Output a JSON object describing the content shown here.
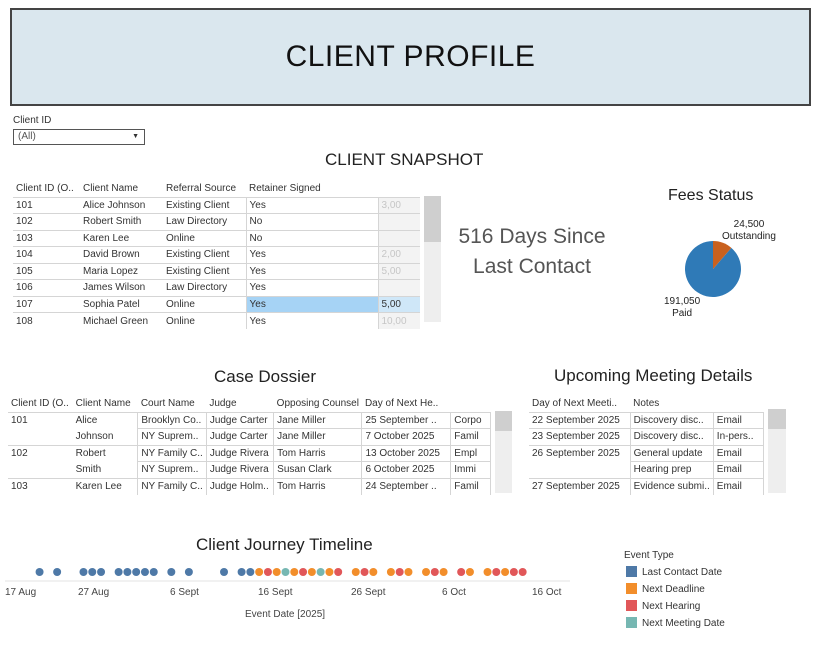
{
  "header": {
    "title": "CLIENT PROFILE"
  },
  "filter": {
    "label": "Client ID",
    "value": "(All)"
  },
  "snapshot": {
    "title": "CLIENT SNAPSHOT",
    "columns": [
      "Client ID (O..",
      "Client Name",
      "Referral Source",
      "Retainer Signed"
    ],
    "rows": [
      {
        "id": "101",
        "name": "Alice Johnson",
        "source": "Existing Client",
        "retainer": "Yes",
        "fee": "3,00"
      },
      {
        "id": "102",
        "name": "Robert Smith",
        "source": "Law Directory",
        "retainer": "No",
        "fee": ""
      },
      {
        "id": "103",
        "name": "Karen Lee",
        "source": "Online",
        "retainer": "No",
        "fee": ""
      },
      {
        "id": "104",
        "name": "David Brown",
        "source": "Existing Client",
        "retainer": "Yes",
        "fee": "2,00"
      },
      {
        "id": "105",
        "name": "Maria Lopez",
        "source": "Existing Client",
        "retainer": "Yes",
        "fee": "5,00"
      },
      {
        "id": "106",
        "name": "James Wilson",
        "source": "Law Directory",
        "retainer": "Yes",
        "fee": ""
      },
      {
        "id": "107",
        "name": "Sophia Patel",
        "source": "Online",
        "retainer": "Yes",
        "fee": "5,00"
      },
      {
        "id": "108",
        "name": "Michael Green",
        "source": "Online",
        "retainer": "Yes",
        "fee": "10,00"
      }
    ]
  },
  "metric": {
    "line1": "516 Days Since",
    "line2": "Last Contact"
  },
  "fees": {
    "title": "Fees Status",
    "outstanding_value": "24,500",
    "outstanding_label": "Outstanding",
    "paid_value": "191,050",
    "paid_label": "Paid",
    "colors": {
      "paid": "#2f7ab7",
      "outstanding": "#c9611f"
    }
  },
  "dossier": {
    "title": "Case Dossier",
    "columns": [
      "Client ID (O..",
      "Client Name",
      "Court Name",
      "Judge",
      "Opposing Counsel",
      "Day of Next He.."
    ],
    "rows": [
      {
        "id": "101",
        "name": "Alice",
        "court": "Brooklyn Co..",
        "judge": "Judge Carter",
        "counsel": "Jane Miller",
        "date": "25 September ..",
        "type": "Corpo"
      },
      {
        "id": "",
        "name": "Johnson",
        "court": "NY Suprem..",
        "judge": "Judge Carter",
        "counsel": "Jane Miller",
        "date": "7 October 2025",
        "type": "Famil"
      },
      {
        "id": "102",
        "name": "Robert",
        "court": "NY Family C..",
        "judge": "Judge Rivera",
        "counsel": "Tom Harris",
        "date": "13 October 2025",
        "type": "Empl"
      },
      {
        "id": "",
        "name": "Smith",
        "court": "NY Suprem..",
        "judge": "Judge Rivera",
        "counsel": "Susan Clark",
        "date": "6 October 2025",
        "type": "Immi"
      },
      {
        "id": "103",
        "name": "Karen Lee",
        "court": "NY Family C..",
        "judge": "Judge Holm..",
        "counsel": "Tom Harris",
        "date": "24 September ..",
        "type": "Famil"
      }
    ]
  },
  "meetings": {
    "title": "Upcoming Meeting Details",
    "columns": [
      "Day of Next Meeti..",
      "Notes"
    ],
    "rows": [
      {
        "date": "22 September 2025",
        "note": "Discovery disc..",
        "mode": "Email"
      },
      {
        "date": "23 September 2025",
        "note": "Discovery disc..",
        "mode": "In-pers.."
      },
      {
        "date": "26 September 2025",
        "note": "General update",
        "mode": "Email"
      },
      {
        "date": "",
        "note": "Hearing prep",
        "mode": "Email"
      },
      {
        "date": "27 September 2025",
        "note": "Evidence submi..",
        "mode": "Email"
      }
    ]
  },
  "chart_data": {
    "type": "scatter",
    "title": "Client Journey Timeline",
    "xlabel": "Event Date [2025]",
    "x_ticks": [
      "17 Aug",
      "27 Aug",
      "6 Sept",
      "16 Sept",
      "26 Sept",
      "6 Oct",
      "16 Oct"
    ],
    "x_range": [
      "2025-08-17",
      "2025-10-16"
    ],
    "legend_title": "Event Type",
    "legend_position": "right",
    "series": [
      {
        "name": "Last Contact Date",
        "color": "#4e79a7",
        "x": [
          "2025-08-19",
          "2025-08-21",
          "2025-08-24",
          "2025-08-25",
          "2025-08-26",
          "2025-08-28",
          "2025-08-29",
          "2025-08-30",
          "2025-08-31",
          "2025-09-01",
          "2025-09-03",
          "2025-09-05",
          "2025-09-09",
          "2025-09-11",
          "2025-09-12"
        ]
      },
      {
        "name": "Next Deadline",
        "color": "#f28e2b",
        "x": [
          "2025-09-13",
          "2025-09-15",
          "2025-09-17",
          "2025-09-19",
          "2025-09-21",
          "2025-09-24",
          "2025-09-26",
          "2025-09-28",
          "2025-09-30",
          "2025-10-02",
          "2025-10-04",
          "2025-10-07",
          "2025-10-09",
          "2025-10-11"
        ]
      },
      {
        "name": "Next Hearing",
        "color": "#e15759",
        "x": [
          "2025-09-14",
          "2025-09-18",
          "2025-09-22",
          "2025-09-25",
          "2025-09-29",
          "2025-10-03",
          "2025-10-06",
          "2025-10-10",
          "2025-10-12",
          "2025-10-13"
        ]
      },
      {
        "name": "Next Meeting Date",
        "color": "#76b7b2",
        "x": [
          "2025-09-16",
          "2025-09-20"
        ]
      }
    ]
  }
}
